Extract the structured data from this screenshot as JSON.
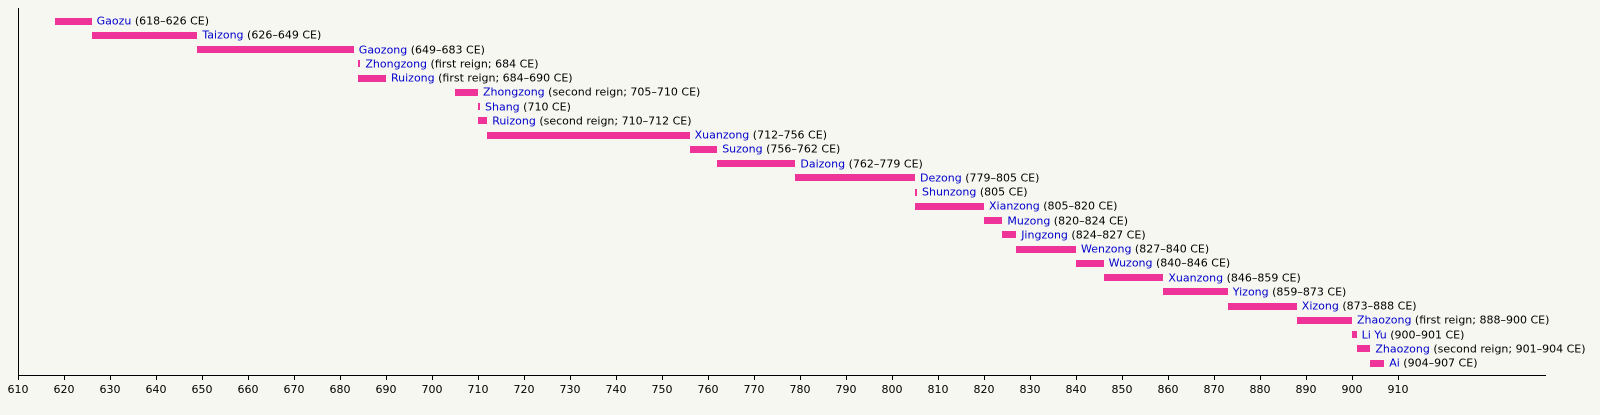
{
  "chart_data": {
    "type": "bar",
    "subtype": "timeline-gantt",
    "title": "",
    "xlabel": "",
    "ylabel": "",
    "grid": false,
    "legend": "none",
    "bar_color": "#ee3399",
    "name_color": "#0000cc",
    "axis_color": "#000000",
    "background_color": "#f7f7f2",
    "x_axis": {
      "min": 610,
      "max": 910,
      "unit": "year CE",
      "tick_interval": 10,
      "ticks": [
        610,
        620,
        630,
        640,
        650,
        660,
        670,
        680,
        690,
        700,
        710,
        720,
        730,
        740,
        750,
        760,
        770,
        780,
        790,
        800,
        810,
        820,
        830,
        840,
        850,
        860,
        870,
        880,
        890,
        900,
        910
      ]
    },
    "reigns": [
      {
        "name": "Gaozu",
        "detail": "(618–626 CE)",
        "start": 618,
        "end": 626
      },
      {
        "name": "Taizong",
        "detail": "(626–649 CE)",
        "start": 626,
        "end": 649
      },
      {
        "name": "Gaozong",
        "detail": "(649–683 CE)",
        "start": 649,
        "end": 683
      },
      {
        "name": "Zhongzong",
        "detail": "(first reign; 684 CE)",
        "start": 684,
        "end": 684
      },
      {
        "name": "Ruizong",
        "detail": "(first reign; 684–690 CE)",
        "start": 684,
        "end": 690
      },
      {
        "name": "Zhongzong",
        "detail": "(second reign; 705–710 CE)",
        "start": 705,
        "end": 710
      },
      {
        "name": "Shang",
        "detail": "(710 CE)",
        "start": 710,
        "end": 710
      },
      {
        "name": "Ruizong",
        "detail": "(second reign; 710–712 CE)",
        "start": 710,
        "end": 712
      },
      {
        "name": "Xuanzong",
        "detail": "(712–756 CE)",
        "start": 712,
        "end": 756
      },
      {
        "name": "Suzong",
        "detail": "(756–762 CE)",
        "start": 756,
        "end": 762
      },
      {
        "name": "Daizong",
        "detail": "(762–779 CE)",
        "start": 762,
        "end": 779
      },
      {
        "name": "Dezong",
        "detail": "(779–805 CE)",
        "start": 779,
        "end": 805
      },
      {
        "name": "Shunzong",
        "detail": "(805 CE)",
        "start": 805,
        "end": 805
      },
      {
        "name": "Xianzong",
        "detail": "(805–820 CE)",
        "start": 805,
        "end": 820
      },
      {
        "name": "Muzong",
        "detail": "(820–824 CE)",
        "start": 820,
        "end": 824
      },
      {
        "name": "Jingzong",
        "detail": "(824–827 CE)",
        "start": 824,
        "end": 827
      },
      {
        "name": "Wenzong",
        "detail": "(827–840 CE)",
        "start": 827,
        "end": 840
      },
      {
        "name": "Wuzong",
        "detail": "(840–846 CE)",
        "start": 840,
        "end": 846
      },
      {
        "name": "Xuanzong",
        "detail": "(846–859 CE)",
        "start": 846,
        "end": 859
      },
      {
        "name": "Yizong",
        "detail": "(859–873 CE)",
        "start": 859,
        "end": 873
      },
      {
        "name": "Xizong",
        "detail": "(873–888 CE)",
        "start": 873,
        "end": 888
      },
      {
        "name": "Zhaozong",
        "detail": "(first reign; 888–900 CE)",
        "start": 888,
        "end": 900
      },
      {
        "name": "Li Yu",
        "detail": "(900–901 CE)",
        "start": 900,
        "end": 901
      },
      {
        "name": "Zhaozong",
        "detail": "(second reign; 901–904 CE)",
        "start": 901,
        "end": 904
      },
      {
        "name": "Ai",
        "detail": "(904–907 CE)",
        "start": 904,
        "end": 907
      }
    ]
  }
}
